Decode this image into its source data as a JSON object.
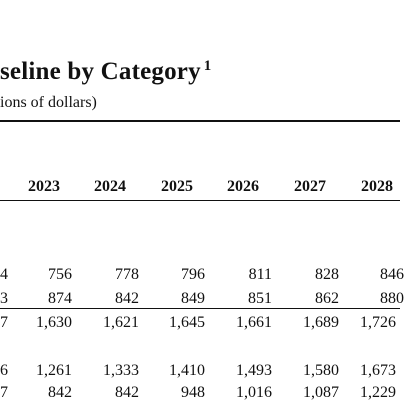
{
  "title": "seline by Category",
  "title_note": "1",
  "subtitle": "ions of dollars)",
  "years": [
    "2023",
    "2024",
    "2025",
    "2026",
    "2027",
    "2028"
  ],
  "rows": [
    {
      "cut": "4",
      "values": [
        "756",
        "778",
        "796",
        "811",
        "828",
        "846"
      ]
    },
    {
      "cut": "3",
      "values": [
        "874",
        "842",
        "849",
        "851",
        "862",
        "880"
      ]
    },
    {
      "cut": "7",
      "values": [
        "1,630",
        "1,621",
        "1,645",
        "1,661",
        "1,689",
        "1,726"
      ]
    },
    {
      "cut": "6",
      "values": [
        "1,261",
        "1,333",
        "1,410",
        "1,493",
        "1,580",
        "1,673"
      ]
    },
    {
      "cut": "7",
      "values": [
        "842",
        "842",
        "948",
        "1,016",
        "1,087",
        "1,229"
      ]
    }
  ]
}
